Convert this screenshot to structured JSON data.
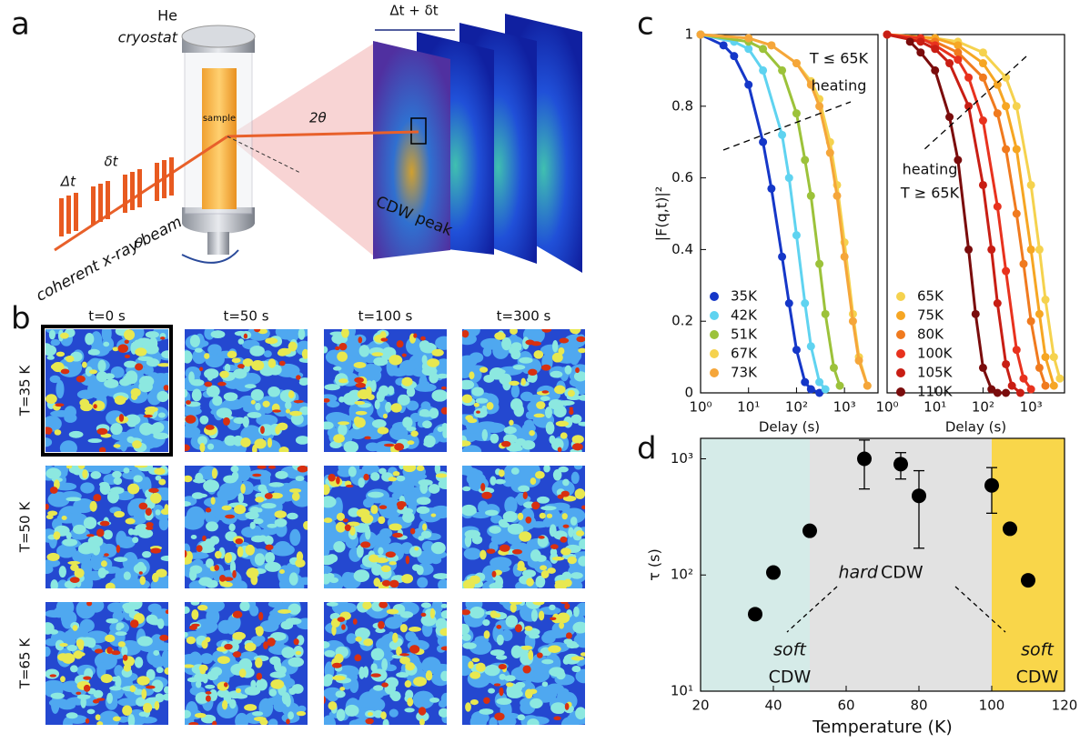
{
  "panel_labels": [
    "a",
    "b",
    "c",
    "d"
  ],
  "panel_a": {
    "he": "He",
    "cryostat": "cryostat",
    "sample": "sample",
    "two_theta": "2θ",
    "delta_total": "Δt + δt",
    "delta_t": "Δt",
    "delta_small": "δt",
    "beam": "coherent x-ray beam",
    "theta": "θ",
    "peak": "CDW peak"
  },
  "panel_b": {
    "columns": [
      "t=0 s",
      "t=50 s",
      "t=100 s",
      "t=300 s"
    ],
    "rows": [
      "T=35 K",
      "T=50 K",
      "T=65 K"
    ]
  },
  "chart_data": [
    {
      "type": "line",
      "xscale": "log",
      "xlabel": "Delay (s)",
      "ylabel": "|F(q,t)|²",
      "xlim": [
        1,
        5000
      ],
      "ylim": [
        0,
        1
      ],
      "xticks": [
        {
          "value": 1,
          "label": "10⁰"
        },
        {
          "value": 10,
          "label": "10¹"
        },
        {
          "value": 100,
          "label": "10²"
        },
        {
          "value": 1000,
          "label": "10³"
        }
      ],
      "yticks": [
        0,
        0.2,
        0.4,
        0.6,
        0.8,
        1
      ],
      "annotations": [
        "T ≤ 65K",
        "heating"
      ],
      "series": [
        {
          "name": "35K",
          "color": "#1537c8",
          "x": [
            1,
            3,
            5,
            10,
            20,
            30,
            50,
            70,
            100,
            150,
            200,
            300
          ],
          "values": [
            1,
            0.97,
            0.94,
            0.86,
            0.7,
            0.57,
            0.38,
            0.25,
            0.12,
            0.03,
            0.01,
            0
          ]
        },
        {
          "name": "42K",
          "color": "#5fd3f0",
          "x": [
            1,
            5,
            10,
            20,
            50,
            70,
            100,
            150,
            200,
            300,
            400
          ],
          "values": [
            1,
            0.98,
            0.96,
            0.9,
            0.72,
            0.6,
            0.44,
            0.25,
            0.13,
            0.03,
            0.01
          ]
        },
        {
          "name": "51K",
          "color": "#9cc23a",
          "x": [
            1,
            10,
            20,
            50,
            100,
            150,
            200,
            300,
            400,
            600,
            800
          ],
          "values": [
            1,
            0.98,
            0.96,
            0.9,
            0.78,
            0.65,
            0.55,
            0.36,
            0.22,
            0.07,
            0.02
          ]
        },
        {
          "name": "67K",
          "color": "#f5d24e",
          "x": [
            1,
            10,
            30,
            100,
            200,
            300,
            500,
            700,
            1000,
            1500,
            2000,
            3000
          ],
          "values": [
            1,
            0.99,
            0.97,
            0.92,
            0.87,
            0.82,
            0.7,
            0.58,
            0.42,
            0.22,
            0.1,
            0.02
          ]
        },
        {
          "name": "73K",
          "color": "#f5a63a",
          "x": [
            1,
            10,
            30,
            100,
            200,
            300,
            500,
            700,
            1000,
            1500,
            2000,
            3000
          ],
          "values": [
            1,
            0.99,
            0.97,
            0.92,
            0.86,
            0.8,
            0.67,
            0.55,
            0.38,
            0.2,
            0.09,
            0.02
          ]
        }
      ]
    },
    {
      "type": "line",
      "xscale": "log",
      "xlabel": "Delay (s)",
      "xlim": [
        1,
        5000
      ],
      "ylim": [
        0,
        1
      ],
      "xticks": [
        {
          "value": 1,
          "label": "10⁰"
        },
        {
          "value": 10,
          "label": "10¹"
        },
        {
          "value": 100,
          "label": "10²"
        },
        {
          "value": 1000,
          "label": "10³"
        }
      ],
      "annotations": [
        "heating",
        "T ≥ 65K"
      ],
      "series": [
        {
          "name": "65K",
          "color": "#f5d24e",
          "x": [
            1,
            10,
            30,
            100,
            300,
            500,
            1000,
            1500,
            2000,
            3000,
            4000
          ],
          "values": [
            1,
            0.99,
            0.98,
            0.95,
            0.88,
            0.8,
            0.58,
            0.4,
            0.26,
            0.1,
            0.04
          ]
        },
        {
          "name": "75K",
          "color": "#f6a623",
          "x": [
            1,
            10,
            30,
            100,
            200,
            300,
            500,
            1000,
            1500,
            2000,
            3000
          ],
          "values": [
            1,
            0.99,
            0.97,
            0.92,
            0.86,
            0.8,
            0.68,
            0.4,
            0.22,
            0.1,
            0.02
          ]
        },
        {
          "name": "80K",
          "color": "#f07a1e",
          "x": [
            1,
            10,
            30,
            100,
            200,
            300,
            500,
            700,
            1000,
            1500,
            2000
          ],
          "values": [
            1,
            0.98,
            0.95,
            0.88,
            0.78,
            0.68,
            0.5,
            0.36,
            0.2,
            0.07,
            0.02
          ]
        },
        {
          "name": "100K",
          "color": "#e8321e",
          "x": [
            1,
            5,
            10,
            30,
            50,
            100,
            200,
            300,
            500,
            700,
            1000
          ],
          "values": [
            1,
            0.99,
            0.97,
            0.93,
            0.88,
            0.76,
            0.52,
            0.34,
            0.12,
            0.04,
            0.01
          ]
        },
        {
          "name": "105K",
          "color": "#c81e14",
          "x": [
            1,
            5,
            10,
            20,
            50,
            100,
            150,
            200,
            300,
            400,
            600
          ],
          "values": [
            1,
            0.98,
            0.96,
            0.92,
            0.8,
            0.58,
            0.4,
            0.25,
            0.08,
            0.02,
            0
          ]
        },
        {
          "name": "110K",
          "color": "#7a0c0c",
          "x": [
            3,
            5,
            10,
            20,
            30,
            50,
            70,
            100,
            150,
            200,
            300
          ],
          "values": [
            0.98,
            0.95,
            0.9,
            0.77,
            0.65,
            0.4,
            0.22,
            0.07,
            0.01,
            0,
            0
          ]
        }
      ]
    },
    {
      "type": "scatter",
      "yscale": "log",
      "xlabel": "Temperature (K)",
      "ylabel": "τ (s)",
      "xlim": [
        20,
        120
      ],
      "ylim": [
        10,
        1500
      ],
      "xticks": [
        20,
        40,
        60,
        80,
        100,
        120
      ],
      "yticks": [
        {
          "value": 10,
          "label": "10¹"
        },
        {
          "value": 100,
          "label": "10²"
        },
        {
          "value": 1000,
          "label": "10³"
        }
      ],
      "color": "#000000",
      "regions": [
        {
          "from": 20,
          "to": 50,
          "color": "#d5ebe8"
        },
        {
          "from": 50,
          "to": 100,
          "color": "#e2e2e2"
        },
        {
          "from": 100,
          "to": 120,
          "color": "#f9d64a"
        }
      ],
      "annotations": [
        "soft",
        "CDW",
        "hard",
        "CDW",
        "soft",
        "CDW"
      ],
      "x": [
        35,
        40,
        50,
        65,
        75,
        80,
        100,
        105,
        110
      ],
      "values": [
        46,
        105,
        240,
        1000,
        900,
        480,
        590,
        250,
        90
      ],
      "error": [
        null,
        null,
        null,
        450,
        230,
        310,
        250,
        null,
        null
      ]
    }
  ]
}
